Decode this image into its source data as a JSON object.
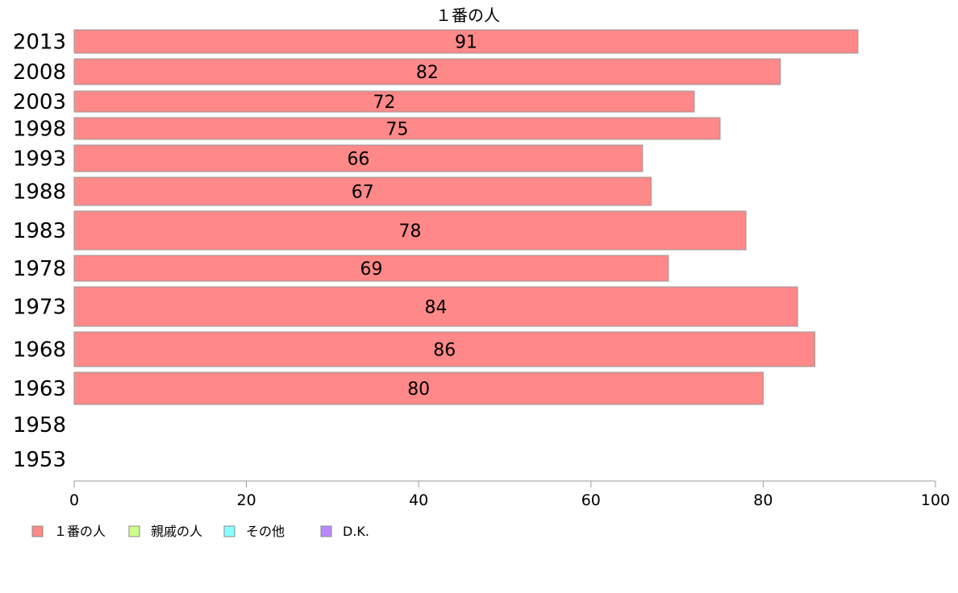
{
  "chart_data": {
    "type": "bar",
    "orientation": "horizontal",
    "title": "１番の人",
    "categories": [
      "2013",
      "2008",
      "2003",
      "1998",
      "1993",
      "1988",
      "1983",
      "1978",
      "1973",
      "1968",
      "1963",
      "1958",
      "1953"
    ],
    "series": [
      {
        "name": "１番の人",
        "color": "#ff8888",
        "values": [
          91,
          82,
          72,
          75,
          66,
          67,
          78,
          69,
          84,
          86,
          80,
          null,
          null
        ]
      }
    ],
    "data_labels": [
      "91",
      "82",
      "72",
      "75",
      "66",
      "67",
      "78",
      "69",
      "84",
      "86",
      "80",
      "",
      ""
    ],
    "xlim": [
      0,
      100
    ],
    "xticks": [
      "0",
      "20",
      "40",
      "60",
      "80",
      "100"
    ],
    "grid": false,
    "legend_position": "bottom-left",
    "legend": [
      {
        "label": "１番の人",
        "color": "#ff8888"
      },
      {
        "label": "親戚の人",
        "color": "#ccff88"
      },
      {
        "label": "その他",
        "color": "#88ffff"
      },
      {
        "label": "D.K.",
        "color": "#bb88ff"
      }
    ]
  }
}
